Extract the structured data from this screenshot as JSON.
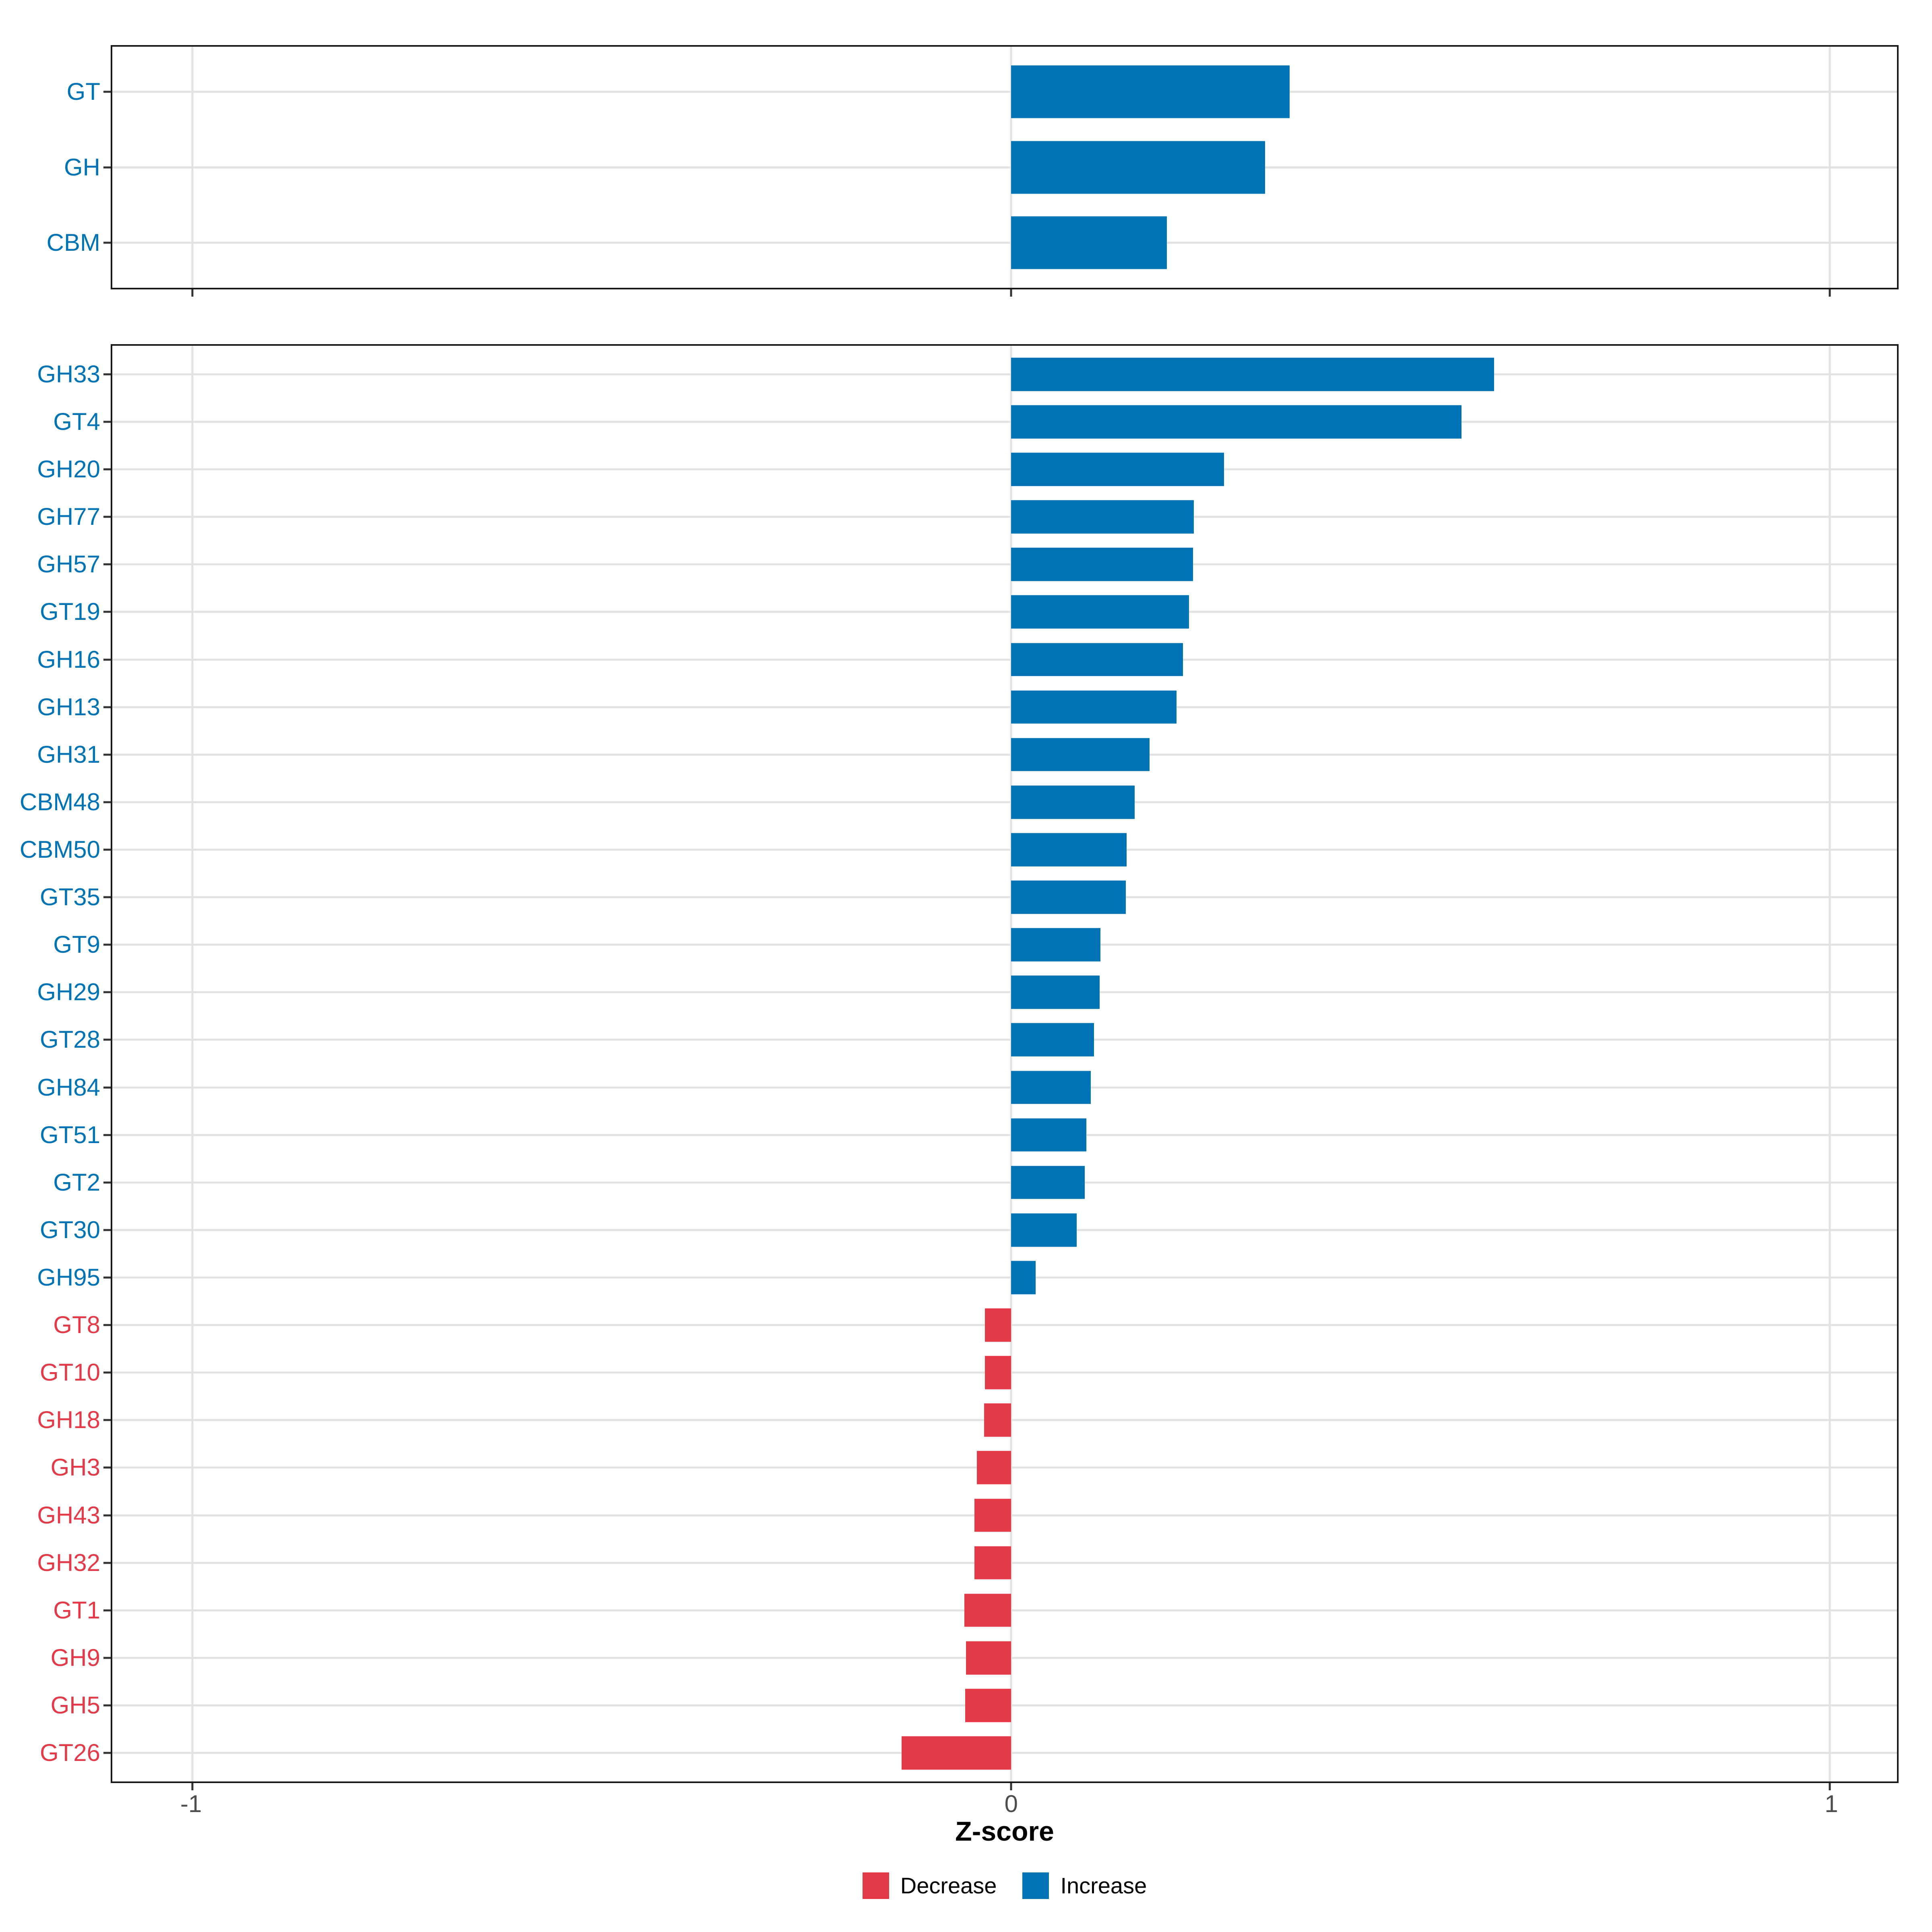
{
  "chart_data": {
    "type": "bar",
    "orientation": "horizontal",
    "xlabel": "Z-score",
    "x_tick_labels": [
      "-1",
      "0",
      "1"
    ],
    "x_tick_values": [
      -1,
      0,
      1
    ],
    "xlim": [
      -1.098,
      1.082
    ],
    "grid": "major gridlines on (light gray), vertical at -1/0/1, horizontal at each category",
    "legend_position": "bottom-center",
    "colors": {
      "decrease": "#E43A48",
      "increase": "#0073B4"
    },
    "legend": [
      {
        "label": "Decrease",
        "key": "decrease"
      },
      {
        "label": "Increase",
        "key": "increase"
      }
    ],
    "panels": [
      {
        "name": "category-summary",
        "categories": [
          "GT",
          "GH",
          "CBM"
        ],
        "values": [
          0.34,
          0.31,
          0.19
        ]
      },
      {
        "name": "cazyme-families",
        "categories": [
          "GH33",
          "GT4",
          "GH20",
          "GH77",
          "GH57",
          "GT19",
          "GH16",
          "GH13",
          "GH31",
          "CBM48",
          "CBM50",
          "GT35",
          "GT9",
          "GH29",
          "GT28",
          "GH84",
          "GT51",
          "GT2",
          "GT30",
          "GH95",
          "GT8",
          "GT10",
          "GH18",
          "GH3",
          "GH43",
          "GH32",
          "GT1",
          "GH9",
          "GH5",
          "GT26"
        ],
        "values": [
          0.59,
          0.55,
          0.26,
          0.223,
          0.222,
          0.217,
          0.21,
          0.202,
          0.169,
          0.151,
          0.141,
          0.14,
          0.109,
          0.108,
          0.101,
          0.097,
          0.092,
          0.09,
          0.08,
          0.03,
          -0.032,
          -0.032,
          -0.033,
          -0.042,
          -0.045,
          -0.045,
          -0.057,
          -0.055,
          -0.056,
          -0.134
        ]
      }
    ]
  }
}
